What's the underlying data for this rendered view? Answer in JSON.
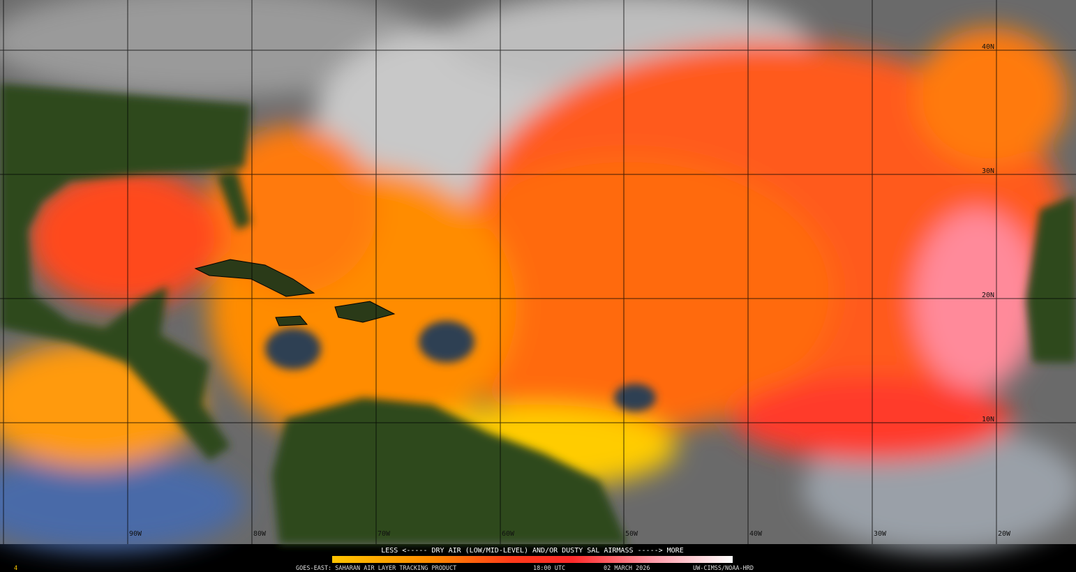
{
  "map": {
    "longitude_labels": [
      "90W",
      "80W",
      "70W",
      "60W",
      "50W",
      "40W",
      "30W",
      "20W"
    ],
    "latitude_labels": [
      "40N",
      "30N",
      "20N",
      "10N"
    ],
    "legend": "LESS <----- DRY AIR (LOW/MID-LEVEL) AND/OR DUSTY SAL AIRMASS -----> MORE",
    "footer": {
      "product": "GOES-EAST: SAHARAN AIR LAYER TRACKING PRODUCT",
      "time": "18:00 UTC",
      "date": "02 MARCH 2026",
      "credit": "UW-CIMSS/NOAA-HRD"
    },
    "corner_mark": "4"
  }
}
